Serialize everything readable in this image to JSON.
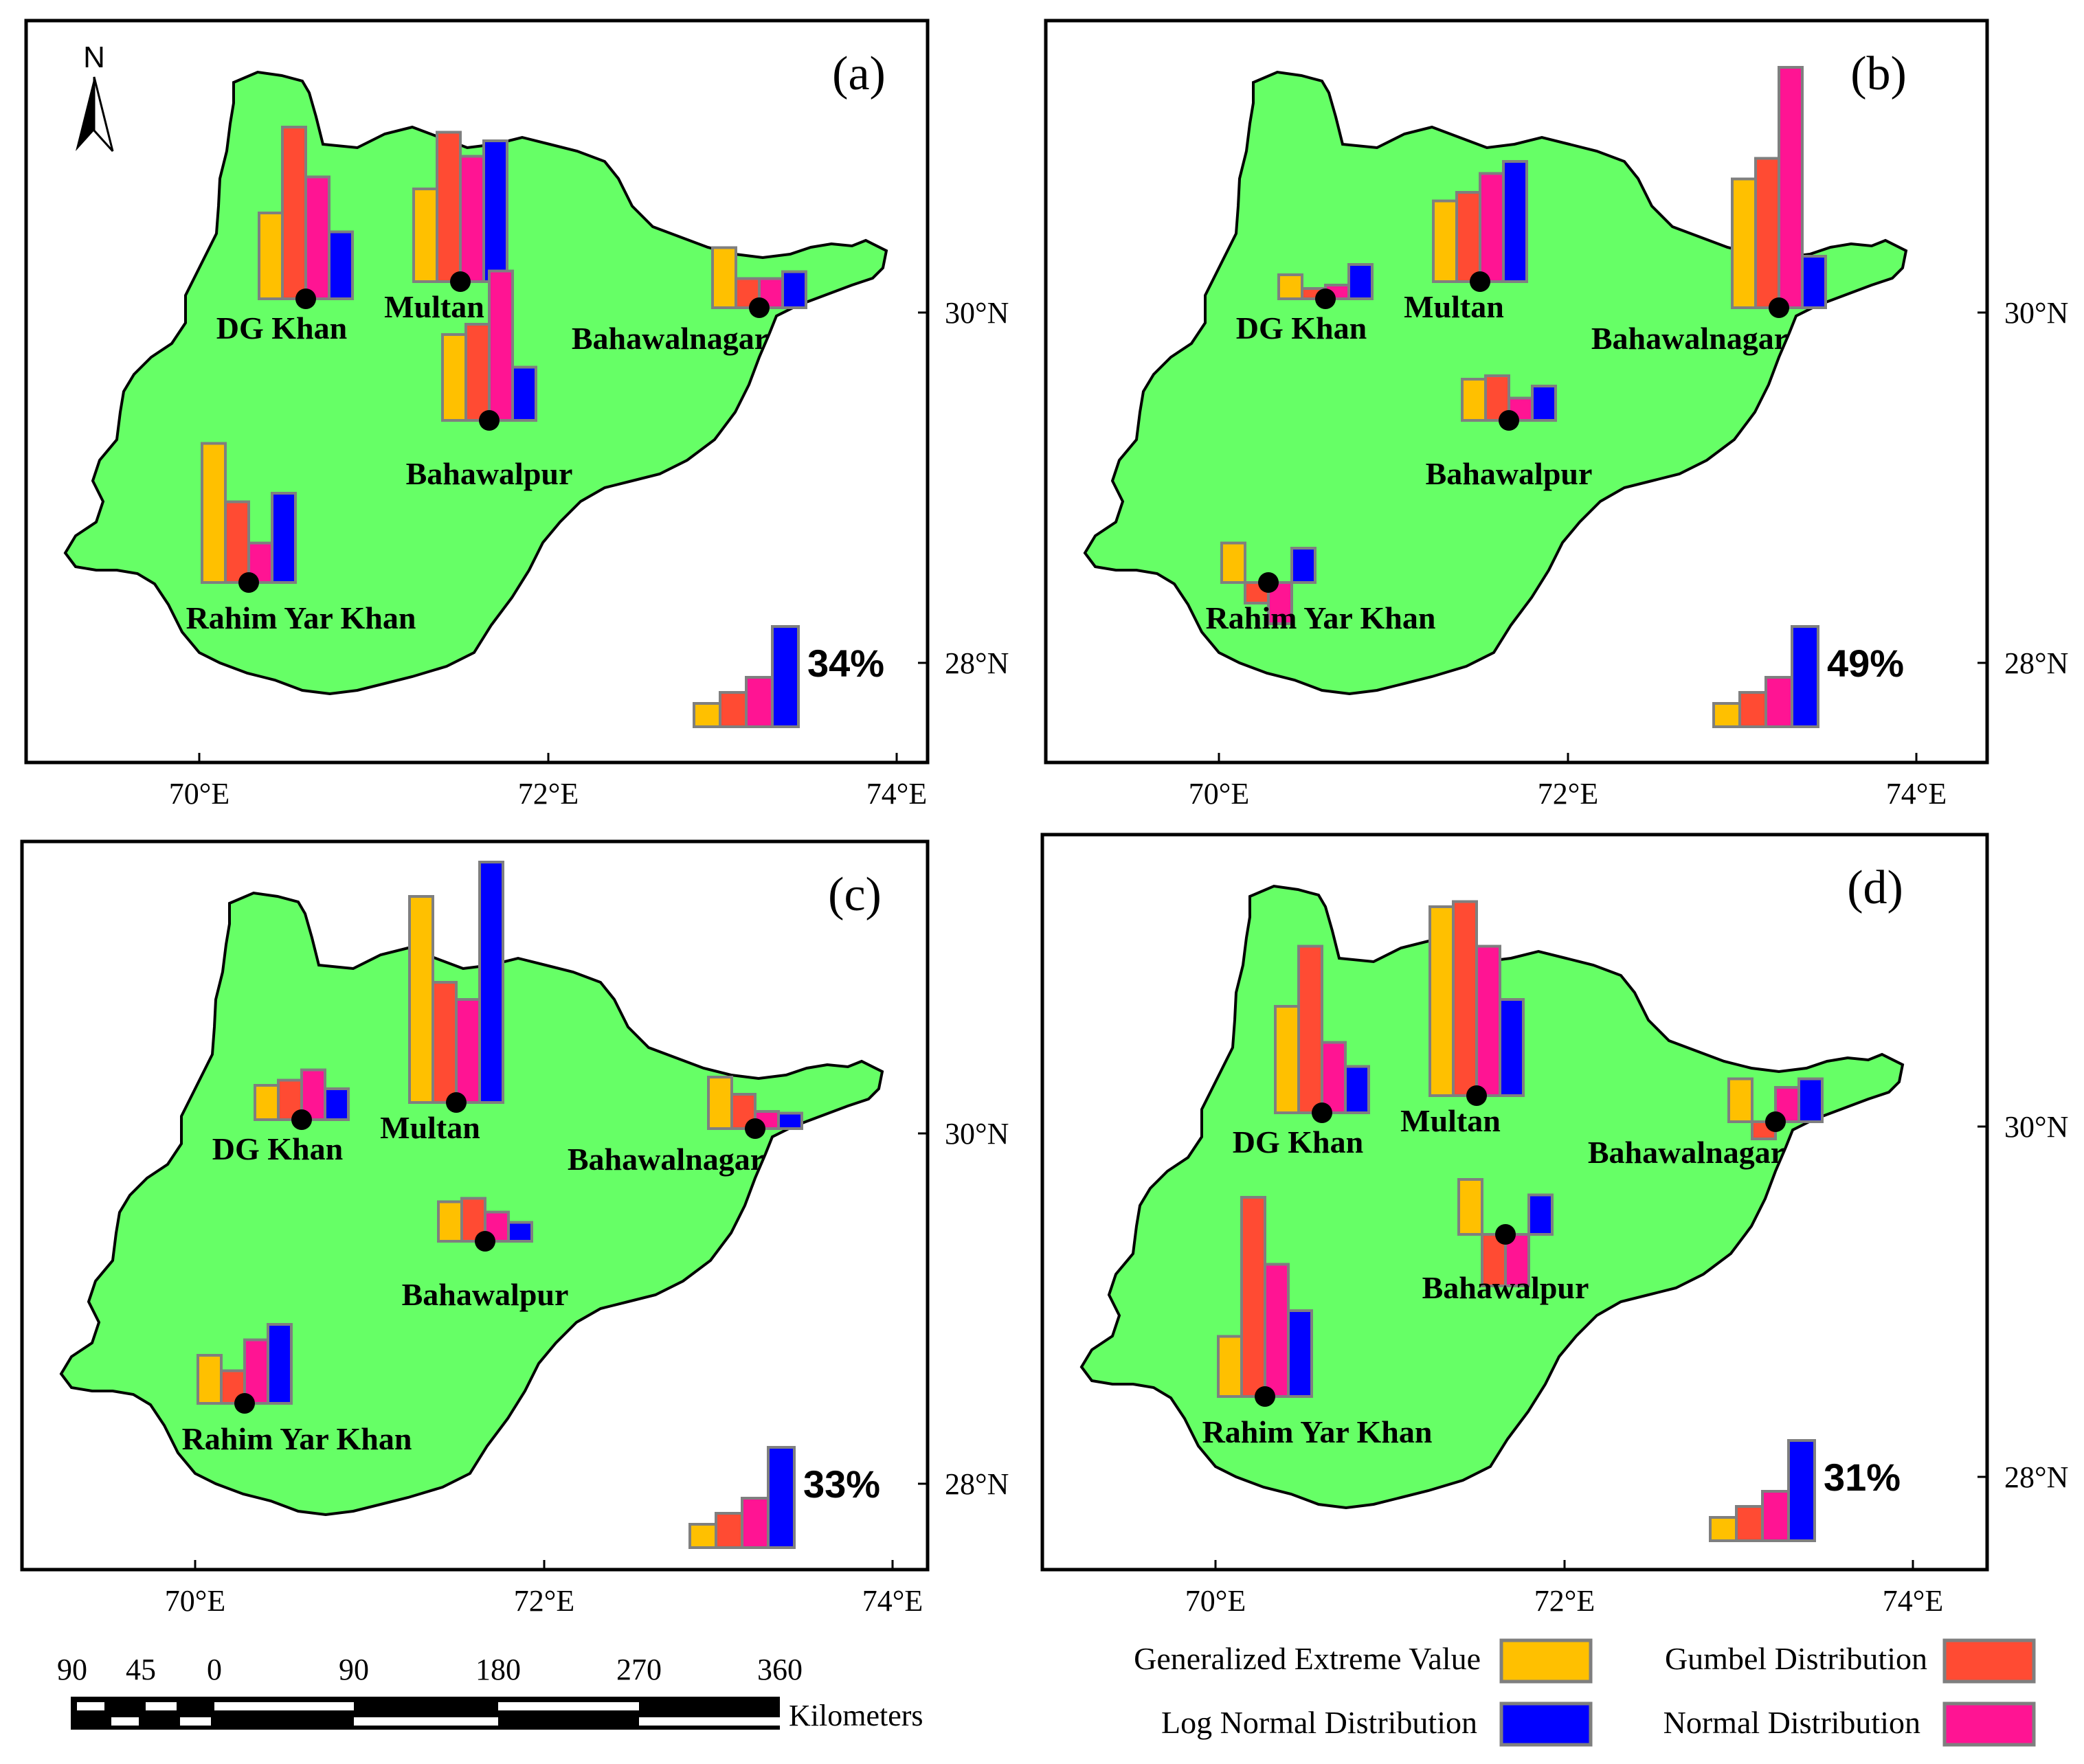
{
  "colors": {
    "land": "#66ff66",
    "gev": "#ffc000",
    "gumbel": "#ff4b33",
    "normal": "#ff1493",
    "lognormal": "#0000ff",
    "bar_outline": "#7f7f7f",
    "frame": "#000000"
  },
  "north_label": "N",
  "axes": {
    "lon_ticks": [
      "70°E",
      "72°E",
      "74°E"
    ],
    "lat_ticks": [
      "30°N",
      "28°N"
    ]
  },
  "panels": [
    {
      "id": "a",
      "label": "(a)",
      "percent": "34%",
      "sites": [
        {
          "name": "DG Khan",
          "values": [
            0.5,
            1.0,
            0.71,
            0.39
          ]
        },
        {
          "name": "Multan",
          "values": [
            0.54,
            0.87,
            0.73,
            0.82
          ]
        },
        {
          "name": "Bahawalnagar",
          "values": [
            0.35,
            0.17,
            0.17,
            0.21
          ]
        },
        {
          "name": "Bahawalpur",
          "values": [
            0.5,
            0.56,
            0.87,
            0.31
          ]
        },
        {
          "name": "Rahim Yar Khan",
          "values": [
            0.81,
            0.47,
            0.23,
            0.52
          ]
        }
      ]
    },
    {
      "id": "b",
      "label": "(b)",
      "percent": "49%",
      "sites": [
        {
          "name": "DG Khan",
          "values": [
            0.14,
            0.06,
            0.08,
            0.2
          ]
        },
        {
          "name": "Multan",
          "values": [
            0.47,
            0.52,
            0.63,
            0.7
          ]
        },
        {
          "name": "Bahawalnagar",
          "values": [
            0.75,
            0.87,
            1.4,
            0.3
          ]
        },
        {
          "name": "Bahawalpur",
          "values": [
            0.24,
            0.26,
            0.13,
            0.2
          ]
        },
        {
          "name": "Rahim Yar Khan",
          "values": [
            0.23,
            -0.12,
            -0.24,
            0.2
          ]
        }
      ]
    },
    {
      "id": "c",
      "label": "(c)",
      "percent": "33%",
      "sites": [
        {
          "name": "DG Khan",
          "values": [
            0.2,
            0.23,
            0.29,
            0.18
          ]
        },
        {
          "name": "Multan",
          "values": [
            1.2,
            0.7,
            0.6,
            1.4
          ]
        },
        {
          "name": "Bahawalnagar",
          "values": [
            0.3,
            0.2,
            0.1,
            0.09
          ]
        },
        {
          "name": "Bahawalpur",
          "values": [
            0.23,
            0.25,
            0.17,
            0.11
          ]
        },
        {
          "name": "Rahim Yar Khan",
          "values": [
            0.28,
            0.19,
            0.37,
            0.46
          ]
        }
      ]
    },
    {
      "id": "d",
      "label": "(d)",
      "percent": "31%",
      "sites": [
        {
          "name": "DG Khan",
          "values": [
            0.62,
            0.97,
            0.41,
            0.27
          ]
        },
        {
          "name": "Multan",
          "values": [
            1.1,
            1.13,
            0.87,
            0.56
          ]
        },
        {
          "name": "Bahawalnagar",
          "values": [
            0.25,
            -0.1,
            0.2,
            0.25
          ]
        },
        {
          "name": "Bahawalpur",
          "values": [
            0.32,
            -0.3,
            -0.3,
            0.23
          ]
        },
        {
          "name": "Rahim Yar Khan",
          "values": [
            0.35,
            1.16,
            0.77,
            0.5
          ]
        }
      ]
    }
  ],
  "scale_bar": {
    "labels": [
      "90",
      "45",
      "0",
      "90",
      "180",
      "270",
      "360"
    ],
    "unit": "Kilometers"
  },
  "legend": {
    "gev": "Generalized Extreme Value",
    "gumbel": "Gumbel Distribution",
    "lognormal": "Log Normal Distribution",
    "normal": "Normal Distribution"
  }
}
